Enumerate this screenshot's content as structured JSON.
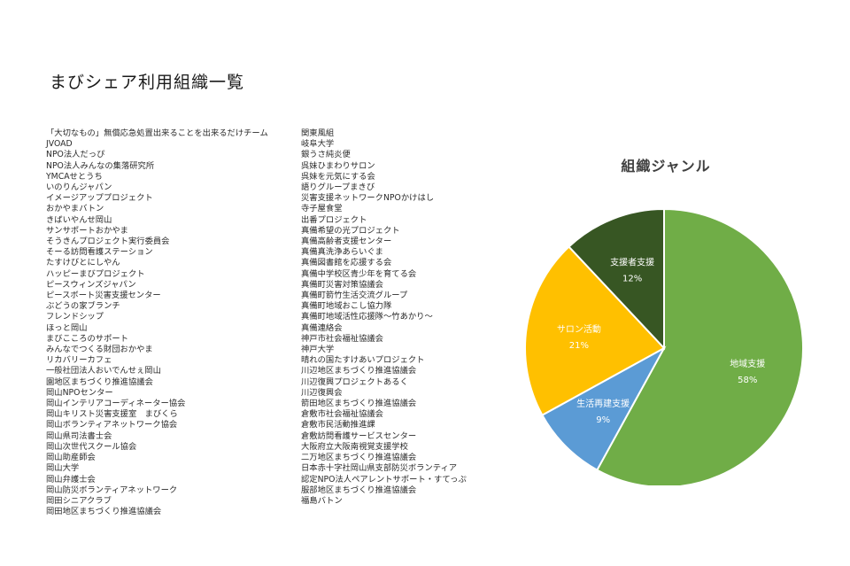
{
  "page": {
    "title": "まびシェア利用組織一覧"
  },
  "organizations": {
    "left": [
      "「大切なもの」無償応急処置出来ることを出来るだけチーム",
      "JVOAD",
      "NPO法人だっぴ",
      "NPO法人みんなの集落研究所",
      "YMCAせとうち",
      "いのりんジャパン",
      "イメージアッププロジェクト",
      "おかやまバトン",
      "きばいやんせ岡山",
      "サンサポートおかやま",
      "そうきんプロジェクト実行委員会",
      "そーる訪問看護ステーション",
      "たすけびとにしやん",
      "ハッピーまびプロジェクト",
      "ピースウィンズジャパン",
      "ピースボート災害支援センター",
      "ぶどうの家ブランチ",
      "フレンドシップ",
      "ほっと岡山",
      "まびこころのサポート",
      "みんなでつくる財団おかやま",
      "リカバリーカフェ",
      "一般社団法人おいでんせぇ岡山",
      "園地区まちづくり推進協議会",
      "岡山NPOセンター",
      "岡山インテリアコーディネーター協会",
      "岡山キリスト災害支援室　まびくら",
      "岡山ボランティアネットワーク協会",
      "岡山県司法書士会",
      "岡山次世代スクール協会",
      "岡山助産師会",
      "岡山大学",
      "岡山弁護士会",
      "岡山防災ボランティアネットワーク",
      "岡田シニアクラブ",
      "岡田地区まちづくり推進協議会"
    ],
    "right": [
      "関東風組",
      "岐阜大学",
      "銀うさ純炎便",
      "呉妹ひまわりサロン",
      "呉妹を元気にする会",
      "語りグループまきび",
      "災害支援ネットワークNPOかけはし",
      "寺子屋食堂",
      "出番プロジェクト",
      "真備希望の光プロジェクト",
      "真備高齢者支援センター",
      "真備真洗浄あらいぐま",
      "真備図書館を応援する会",
      "真備中学校区青少年を育てる会",
      "真備町災害対策協議会",
      "真備町箭竹生活交流グループ",
      "真備町地域おこし協力隊",
      "真備町地域活性応援隊～竹あかり～",
      "真備連絡会",
      "神戸市社会福祉協議会",
      "神戸大学",
      "晴れの国たすけあいプロジェクト",
      "川辺地区まちづくり推進協議会",
      "川辺復興プロジェクトあるく",
      "川辺復興会",
      "箭田地区まちづくり推進協議会",
      "倉敷市社会福祉協議会",
      "倉敷市民活動推進課",
      "倉敷訪問看護サービスセンター",
      "大阪府立大阪南視覚支援学校",
      "二万地区まちづくり推進協議会",
      "日本赤十字社岡山県支部防災ボランティア",
      "認定NPO法人ペアレントサポート・すてっぷ",
      "服部地区まちづくり推進協議会",
      "福島バトン"
    ]
  },
  "chart_data": {
    "type": "pie",
    "title": "組織ジャンル",
    "slices": [
      {
        "label": "地域支援",
        "value": 58,
        "percent_label": "58%",
        "color": "#70ad47"
      },
      {
        "label": "生活再建支援",
        "value": 9,
        "percent_label": "9%",
        "color": "#5b9bd5"
      },
      {
        "label": "サロン活動",
        "value": 21,
        "percent_label": "21%",
        "color": "#ffc000"
      },
      {
        "label": "支援者支援",
        "value": 12,
        "percent_label": "12%",
        "color": "#375623"
      }
    ],
    "start": "12 o'clock",
    "direction": "clockwise",
    "legend": "none (labels inside slices)"
  }
}
